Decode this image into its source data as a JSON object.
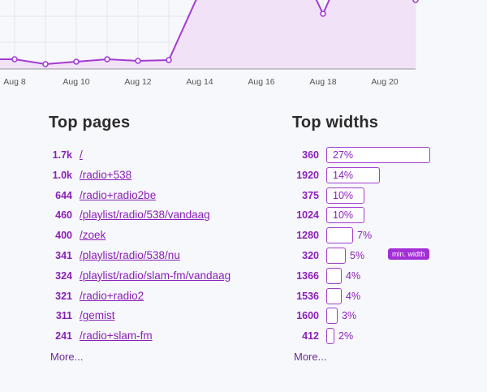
{
  "chart_data": {
    "type": "area",
    "x_tick_labels": [
      "Aug 8",
      "Aug 10",
      "Aug 12",
      "Aug 14",
      "Aug 16",
      "Aug 18",
      "Aug 20"
    ]
  },
  "top_pages": {
    "title": "Top pages",
    "items": [
      {
        "count": "1.7k",
        "path": "/"
      },
      {
        "count": "1.0k",
        "path": "/radio+538"
      },
      {
        "count": "644",
        "path": "/radio+radio2be"
      },
      {
        "count": "460",
        "path": "/playlist/radio/538/vandaag"
      },
      {
        "count": "400",
        "path": "/zoek"
      },
      {
        "count": "341",
        "path": "/playlist/radio/538/nu"
      },
      {
        "count": "324",
        "path": "/playlist/radio/slam-fm/vandaag"
      },
      {
        "count": "321",
        "path": "/radio+radio2"
      },
      {
        "count": "311",
        "path": "/gemist"
      },
      {
        "count": "241",
        "path": "/radio+slam-fm"
      }
    ],
    "more": "More..."
  },
  "top_widths": {
    "title": "Top widths",
    "items": [
      {
        "width": "360",
        "percent": "27%",
        "share": 27
      },
      {
        "width": "1920",
        "percent": "14%",
        "share": 14
      },
      {
        "width": "375",
        "percent": "10%",
        "share": 10
      },
      {
        "width": "1024",
        "percent": "10%",
        "share": 10
      },
      {
        "width": "1280",
        "percent": "7%",
        "share": 7
      },
      {
        "width": "320",
        "percent": "5%",
        "share": 5,
        "badge": "min. width"
      },
      {
        "width": "1366",
        "percent": "4%",
        "share": 4
      },
      {
        "width": "1536",
        "percent": "4%",
        "share": 4
      },
      {
        "width": "1600",
        "percent": "3%",
        "share": 3
      },
      {
        "width": "412",
        "percent": "2%",
        "share": 2
      }
    ],
    "more": "More..."
  },
  "colors": {
    "accent": "#8a1fb8",
    "line": "#a43ad2",
    "fill": "#f1e2f8"
  }
}
